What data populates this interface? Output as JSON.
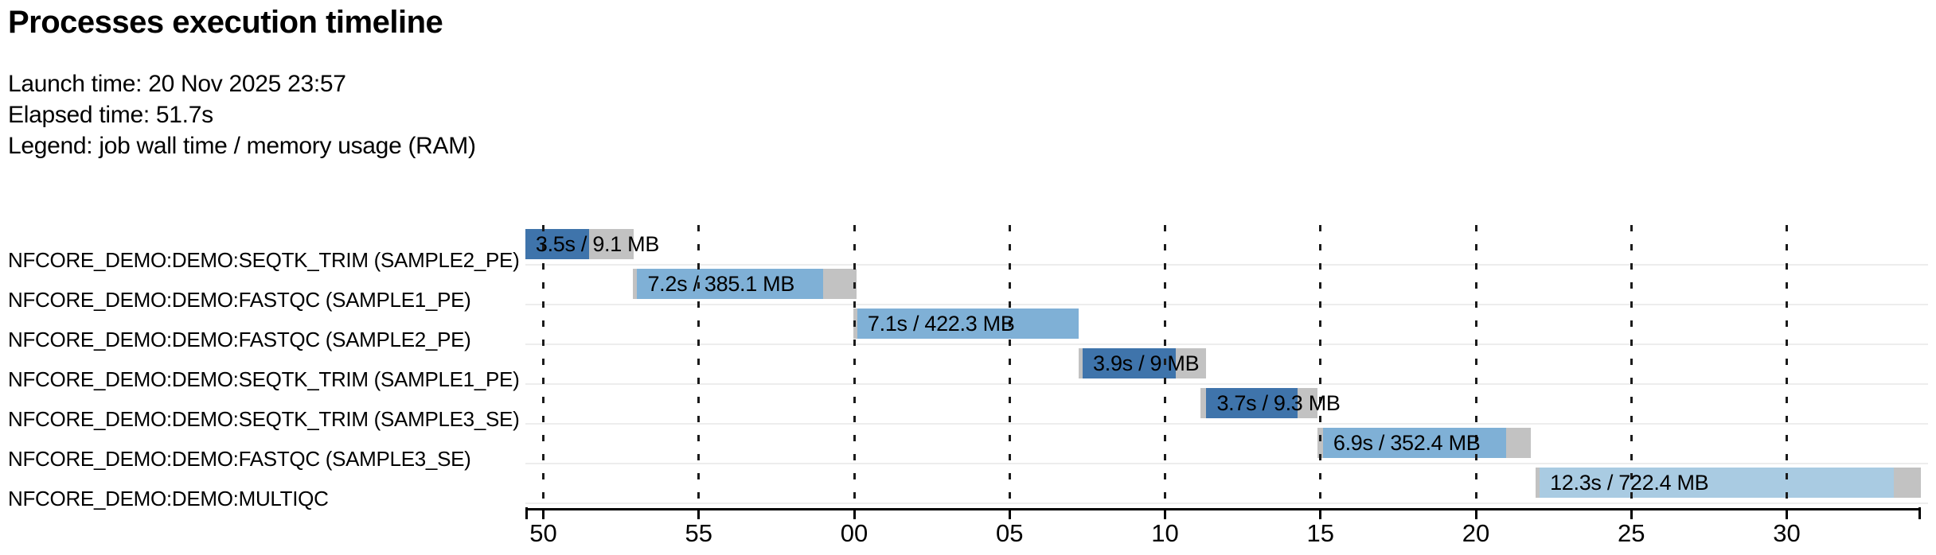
{
  "page": {
    "title": "Processes execution timeline"
  },
  "meta": {
    "launch": "Launch time: 20 Nov 2025 23:57",
    "elapsed": "Elapsed time: 51.7s",
    "legend": "Legend: job wall time / memory usage (RAM)"
  },
  "colors": {
    "seqtk_trim": "#3f74ab",
    "fastqc": "#7fb0d6",
    "multiqc": "#a9cbe2",
    "overhead": "#c2c2c2",
    "grid": "#1b1b1b",
    "separator": "#ededed",
    "axis": "#000000",
    "background": "#ffffff",
    "text": "#000000"
  },
  "chart_data": {
    "type": "timeline",
    "title": "Processes execution timeline",
    "launch_time": "20 Nov 2025 23:57",
    "elapsed_time": "51.7s",
    "legend_note": "job wall time / memory usage (RAM)",
    "x_axis": {
      "unit": "clock seconds (mm:ss wrapping at 00)",
      "domain_start_s": 49.5,
      "domain_end_s": 94.35,
      "gridlines": true,
      "ticks": [
        {
          "t": 50,
          "label": "50"
        },
        {
          "t": 55,
          "label": "55"
        },
        {
          "t": 60,
          "label": "00"
        },
        {
          "t": 65,
          "label": "05"
        },
        {
          "t": 70,
          "label": "10"
        },
        {
          "t": 75,
          "label": "15"
        },
        {
          "t": 80,
          "label": "20"
        },
        {
          "t": 85,
          "label": "25"
        },
        {
          "t": 90,
          "label": "30"
        }
      ]
    },
    "tasks": [
      {
        "name": "NFCORE_DEMO:DEMO:SEQTK_TRIM (SAMPLE2_PE)",
        "bar_label": "3.5s / 9.1 MB",
        "wall_time": "3.5s",
        "memory": "9.1 MB",
        "color_key": "seqtk_trim",
        "segments": [
          {
            "kind": "run",
            "start_s": 49.42,
            "end_s": 51.47
          },
          {
            "kind": "overhead",
            "start_s": 51.47,
            "end_s": 52.9
          }
        ]
      },
      {
        "name": "NFCORE_DEMO:DEMO:FASTQC (SAMPLE1_PE)",
        "bar_label": "7.2s / 385.1 MB",
        "wall_time": "7.2s",
        "memory": "385.1 MB",
        "color_key": "fastqc",
        "segments": [
          {
            "kind": "overhead",
            "start_s": 52.88,
            "end_s": 53.02
          },
          {
            "kind": "run",
            "start_s": 53.02,
            "end_s": 59.0
          },
          {
            "kind": "overhead",
            "start_s": 59.0,
            "end_s": 60.08
          }
        ]
      },
      {
        "name": "NFCORE_DEMO:DEMO:FASTQC (SAMPLE2_PE)",
        "bar_label": "7.1s / 422.3 MB",
        "wall_time": "7.1s",
        "memory": "422.3 MB",
        "color_key": "fastqc",
        "segments": [
          {
            "kind": "overhead",
            "start_s": 59.97,
            "end_s": 60.1
          },
          {
            "kind": "run",
            "start_s": 60.1,
            "end_s": 67.22
          }
        ]
      },
      {
        "name": "NFCORE_DEMO:DEMO:SEQTK_TRIM (SAMPLE1_PE)",
        "bar_label": "3.9s / 9 MB",
        "wall_time": "3.9s",
        "memory": "9 MB",
        "color_key": "seqtk_trim",
        "segments": [
          {
            "kind": "overhead",
            "start_s": 67.22,
            "end_s": 67.35
          },
          {
            "kind": "run",
            "start_s": 67.35,
            "end_s": 70.34
          },
          {
            "kind": "overhead",
            "start_s": 70.34,
            "end_s": 71.32
          }
        ]
      },
      {
        "name": "NFCORE_DEMO:DEMO:SEQTK_TRIM (SAMPLE3_SE)",
        "bar_label": "3.7s / 9.3 MB",
        "wall_time": "3.7s",
        "memory": "9.3 MB",
        "color_key": "seqtk_trim",
        "segments": [
          {
            "kind": "overhead",
            "start_s": 71.15,
            "end_s": 71.33
          },
          {
            "kind": "run",
            "start_s": 71.33,
            "end_s": 74.26
          },
          {
            "kind": "overhead",
            "start_s": 74.26,
            "end_s": 74.9
          }
        ]
      },
      {
        "name": "NFCORE_DEMO:DEMO:FASTQC (SAMPLE3_SE)",
        "bar_label": "6.9s / 352.4 MB",
        "wall_time": "6.9s",
        "memory": "352.4 MB",
        "color_key": "fastqc",
        "segments": [
          {
            "kind": "overhead",
            "start_s": 74.9,
            "end_s": 75.08
          },
          {
            "kind": "run",
            "start_s": 75.08,
            "end_s": 80.96
          },
          {
            "kind": "overhead",
            "start_s": 80.96,
            "end_s": 81.77
          }
        ]
      },
      {
        "name": "NFCORE_DEMO:DEMO:MULTIQC",
        "bar_label": "12.3s / 722.4 MB",
        "wall_time": "12.3s",
        "memory": "722.4 MB",
        "color_key": "multiqc",
        "segments": [
          {
            "kind": "overhead",
            "start_s": 81.92,
            "end_s": 82.05
          },
          {
            "kind": "run",
            "start_s": 82.05,
            "end_s": 93.44
          },
          {
            "kind": "overhead",
            "start_s": 93.44,
            "end_s": 94.31
          }
        ]
      }
    ]
  }
}
